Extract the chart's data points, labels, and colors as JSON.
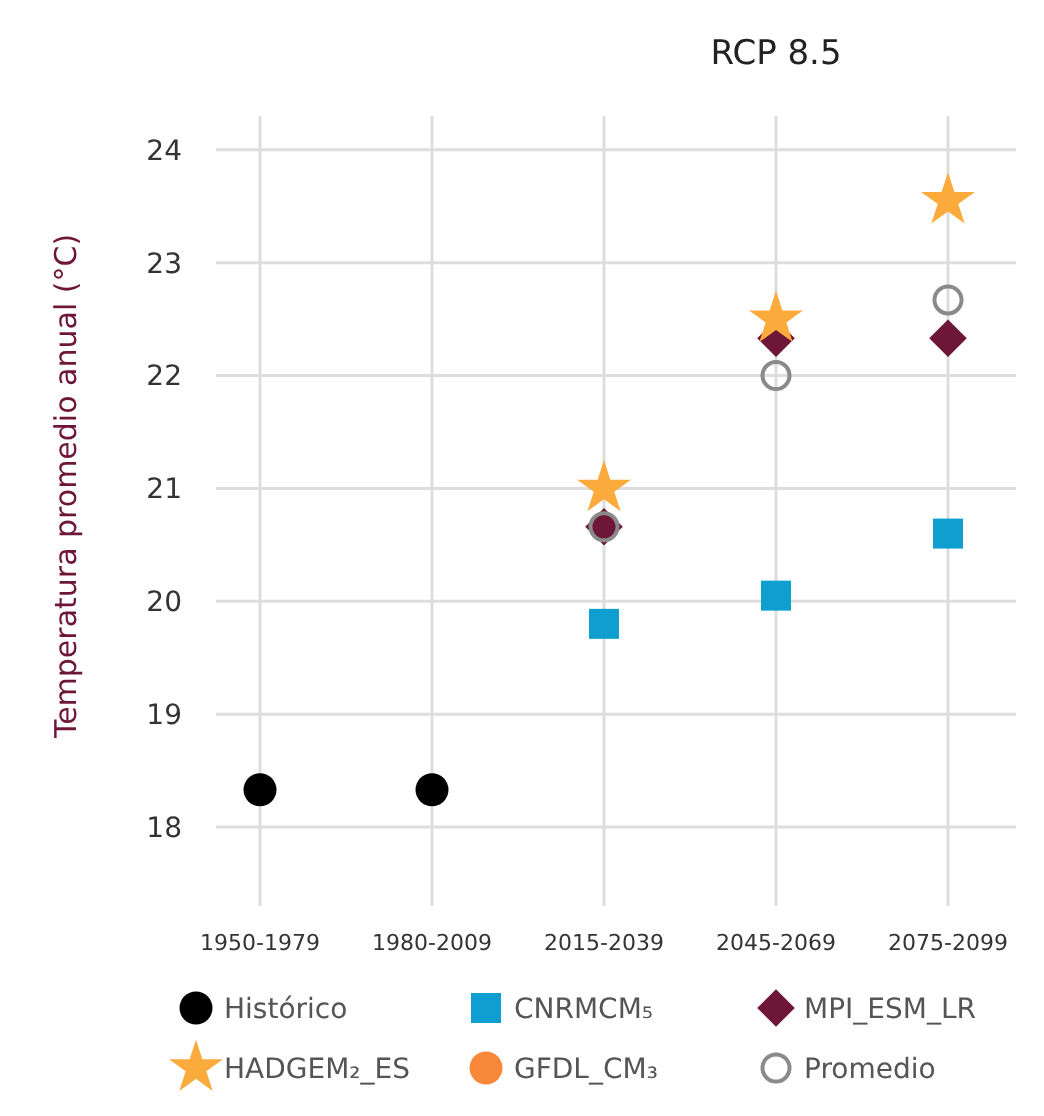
{
  "chart_data": {
    "type": "scatter",
    "title": "RCP 8.5",
    "ylabel": "Temperatura promedio anual (°C)",
    "categories": [
      "1950-1979",
      "1980-2009",
      "2015-2039",
      "2045-2069",
      "2075-2099"
    ],
    "ylim": [
      17.3,
      24.3
    ],
    "yticks": [
      18,
      19,
      20,
      21,
      22,
      23,
      24
    ],
    "grid": true,
    "legend": "bottom",
    "series": [
      {
        "name": "Histórico",
        "color": "#000000",
        "marker": "circle",
        "values": [
          18.33,
          18.33,
          null,
          null,
          null
        ]
      },
      {
        "name": "CNRMCM₅",
        "color": "#0e9fd0",
        "marker": "square",
        "values": [
          null,
          null,
          19.8,
          20.05,
          20.6
        ]
      },
      {
        "name": "MPI_ESM_LR",
        "color": "#6e1638",
        "marker": "diamond",
        "values": [
          null,
          null,
          20.66,
          22.33,
          22.33
        ]
      },
      {
        "name": "HADGEM₂_ES",
        "color": "#fbaa3c",
        "marker": "star",
        "values": [
          null,
          null,
          21.0,
          22.5,
          23.55
        ]
      },
      {
        "name": "GFDL_CM₃",
        "color": "#f7883a",
        "marker": "circle",
        "values": [
          null,
          null,
          null,
          null,
          null
        ]
      },
      {
        "name": "Promedio",
        "color": "#8a8a8a",
        "marker": "circle-open",
        "values": [
          null,
          null,
          20.66,
          22.0,
          22.67
        ]
      }
    ]
  }
}
